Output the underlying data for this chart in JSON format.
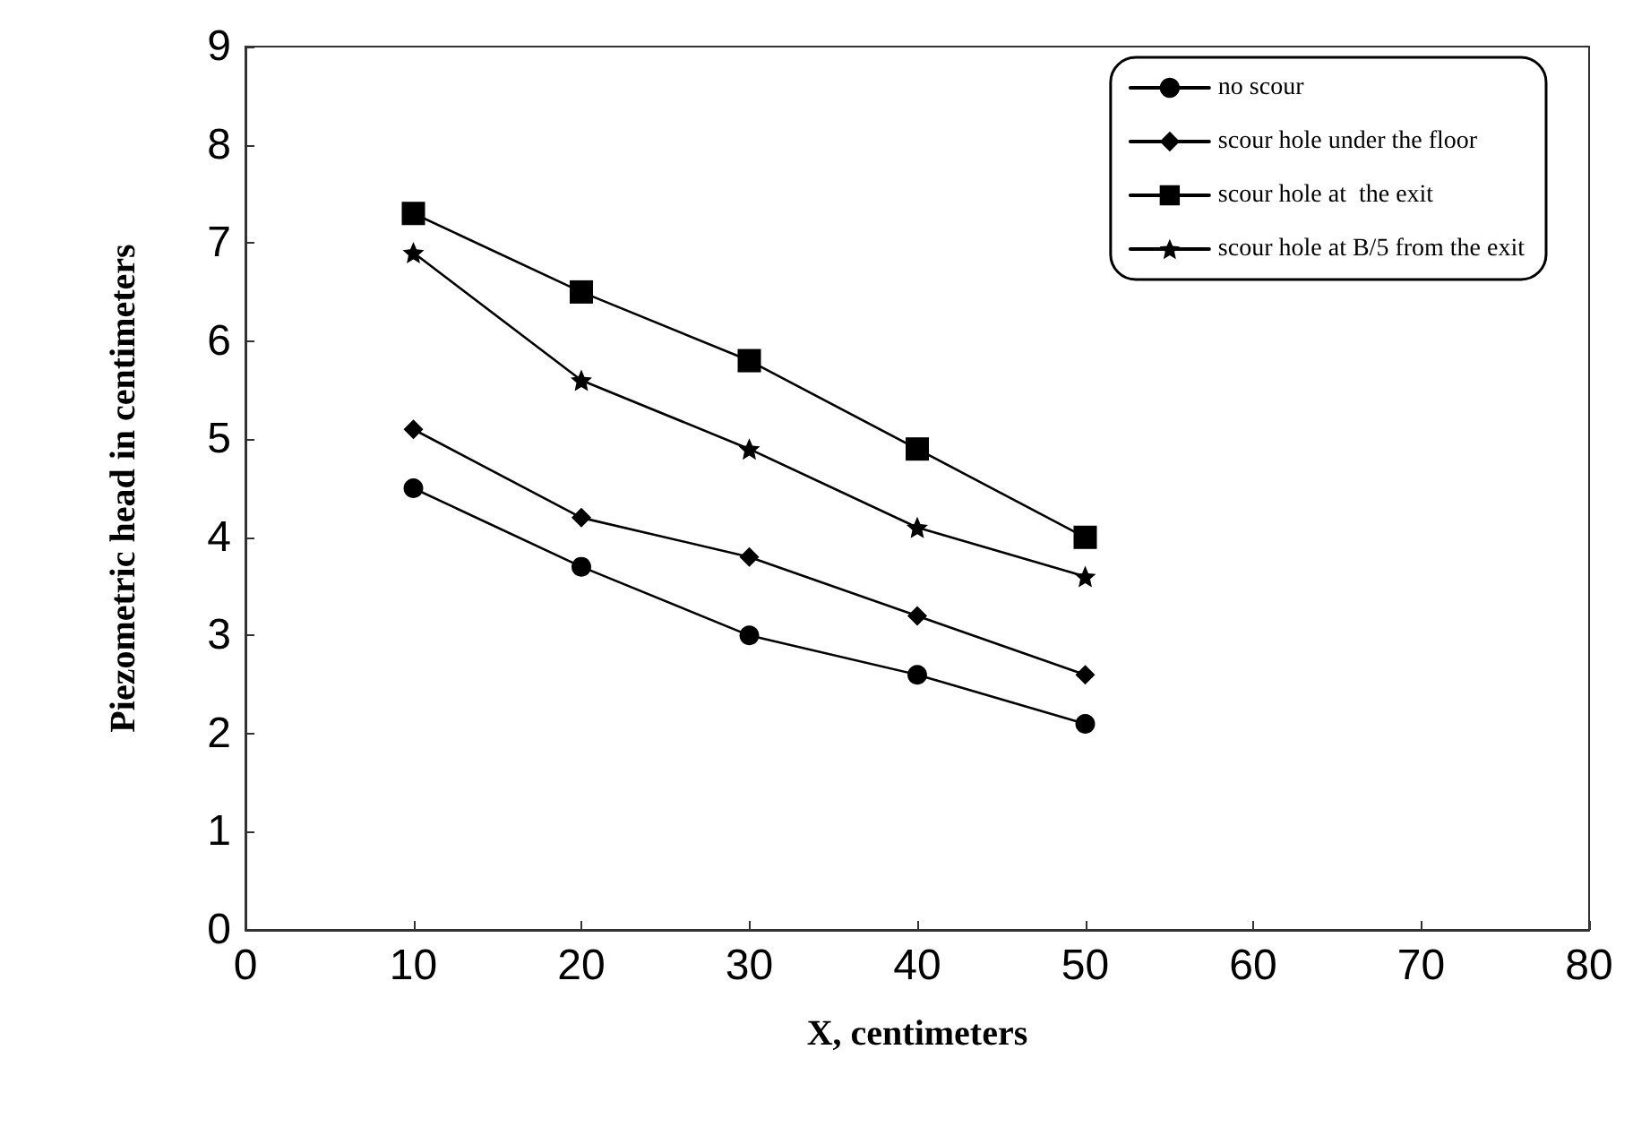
{
  "chart_data": {
    "type": "line",
    "xlabel": "X, centimeters",
    "ylabel": "Piezometric head in centimeters",
    "x": [
      10,
      20,
      30,
      40,
      50
    ],
    "series": [
      {
        "name": "no scour",
        "color": "#000000",
        "marker": "circle",
        "values": [
          4.5,
          3.7,
          3.0,
          2.6,
          2.1
        ]
      },
      {
        "name": "scour hole under the floor",
        "color": "#000000",
        "marker": "diamond",
        "values": [
          5.1,
          4.2,
          3.8,
          3.2,
          2.6
        ]
      },
      {
        "name": "scour hole at  the exit",
        "color": "#000000",
        "marker": "square",
        "values": [
          7.3,
          6.5,
          5.8,
          4.9,
          4.0
        ]
      },
      {
        "name": "scour hole at B/5 from the exit",
        "color": "#000000",
        "marker": "star",
        "values": [
          6.9,
          5.6,
          4.9,
          4.1,
          3.6
        ]
      }
    ],
    "xlim": [
      0,
      80
    ],
    "xticks": [
      0,
      10,
      20,
      30,
      40,
      50,
      60,
      70,
      80
    ],
    "ylim": [
      0,
      9
    ],
    "yticks": [
      0,
      1,
      2,
      3,
      4,
      5,
      6,
      7,
      8,
      9
    ],
    "grid": false,
    "legend": "top right",
    "line_style": "solid"
  }
}
